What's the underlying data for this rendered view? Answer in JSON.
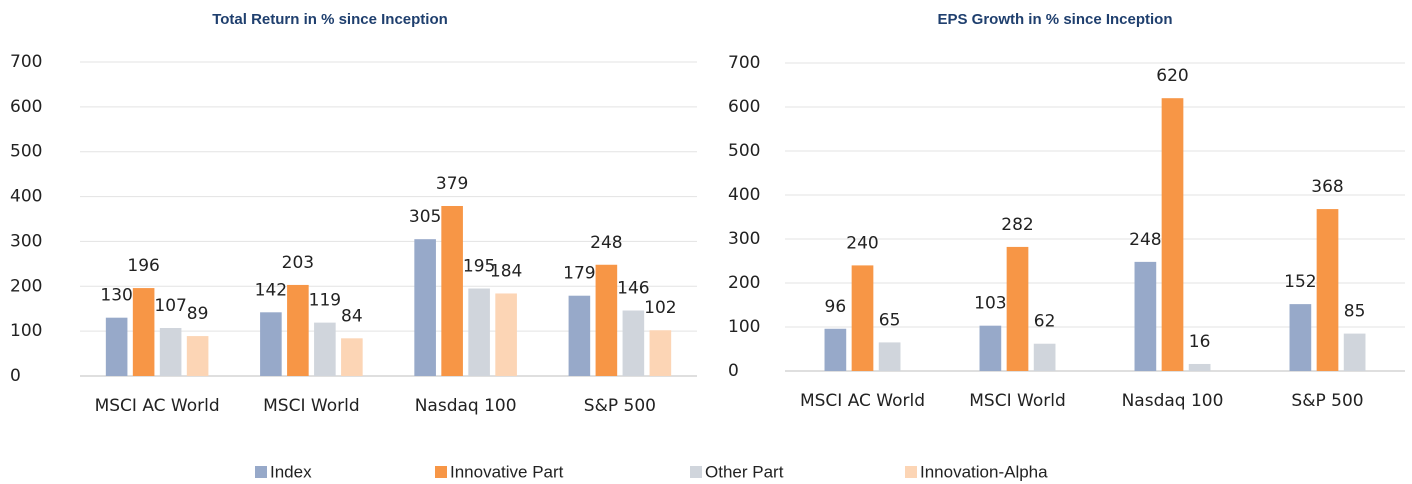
{
  "chart_data": [
    {
      "type": "bar",
      "title": "Total Return in % since Inception",
      "categories": [
        "MSCI AC World",
        "MSCI World",
        "Nasdaq 100",
        "S&P 500"
      ],
      "series": [
        {
          "name": "Index",
          "color": "#97a9c9",
          "values": [
            130,
            142,
            305,
            179
          ]
        },
        {
          "name": "Innovative Part",
          "color": "#f79646",
          "values": [
            196,
            203,
            379,
            248
          ]
        },
        {
          "name": "Other Part",
          "color": "#d0d5dc",
          "values": [
            107,
            119,
            195,
            146
          ]
        },
        {
          "name": "Innovation-Alpha",
          "color": "#fcd5b5",
          "values": [
            89,
            84,
            184,
            102
          ]
        }
      ],
      "ylim": [
        0,
        700
      ],
      "yticks": [
        0,
        100,
        200,
        300,
        400,
        500,
        600,
        700
      ],
      "grid": true
    },
    {
      "type": "bar",
      "title": "EPS Growth in % since Inception",
      "categories": [
        "MSCI AC World",
        "MSCI World",
        "Nasdaq 100",
        "S&P 500"
      ],
      "series": [
        {
          "name": "Index",
          "color": "#97a9c9",
          "values": [
            96,
            103,
            248,
            152
          ]
        },
        {
          "name": "Innovative Part",
          "color": "#f79646",
          "values": [
            240,
            282,
            620,
            368
          ]
        },
        {
          "name": "Other Part",
          "color": "#d0d5dc",
          "values": [
            65,
            62,
            16,
            85
          ]
        }
      ],
      "ylim": [
        0,
        700
      ],
      "yticks": [
        0,
        100,
        200,
        300,
        400,
        500,
        600,
        700
      ],
      "grid": true
    }
  ]
}
